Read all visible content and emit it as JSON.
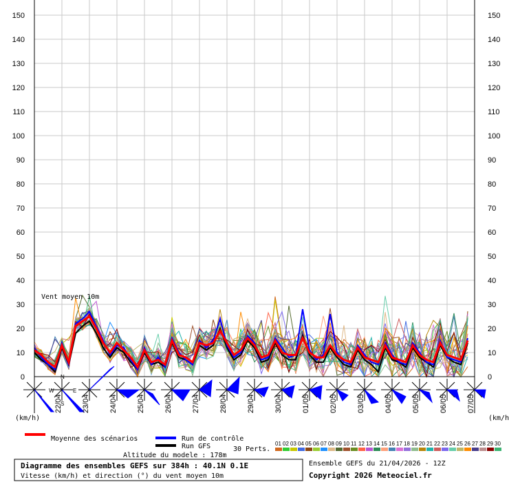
{
  "chart_data": {
    "type": "line",
    "title": "Diagramme des ensembles GEFS sur 384h : 40.1N 0.1E",
    "subtitle": "Vitesse (km/h) et direction (°) du vent moyen 10m",
    "plot_label": "Vent moyen 10m",
    "ylim": [
      0,
      150
    ],
    "yticks": [
      0,
      10,
      20,
      30,
      40,
      50,
      60,
      70,
      80,
      90,
      100,
      110,
      120,
      130,
      140,
      150
    ],
    "ylabel_left": "(km/h)",
    "ylabel_right": "(km/h)",
    "grid": true,
    "x_steps": 64,
    "date_labels": [
      "22/04",
      "23/04",
      "24/04",
      "25/04",
      "26/04",
      "27/04",
      "28/04",
      "29/04",
      "30/04",
      "01/05",
      "02/05",
      "03/05",
      "04/05",
      "05/05",
      "06/05",
      "07/05"
    ],
    "series": [
      {
        "name": "Moyenne des scénarios",
        "color": "#ff0000",
        "values": [
          11,
          9,
          6,
          4,
          13,
          6,
          21,
          23,
          25,
          20,
          14,
          10,
          14,
          11,
          8,
          4,
          11,
          6,
          7,
          5,
          15,
          9,
          8,
          6,
          14,
          13,
          14,
          19,
          14,
          9,
          11,
          16,
          13,
          8,
          9,
          15,
          10,
          9,
          9,
          16,
          10,
          8,
          8,
          13,
          9,
          7,
          6,
          12,
          8,
          7,
          6,
          13,
          8,
          7,
          6,
          13,
          9,
          7,
          6,
          14,
          9,
          8,
          7,
          15
        ]
      },
      {
        "name": "Run de contrôle",
        "color": "#0000ff",
        "values": [
          12,
          8,
          5,
          3,
          14,
          5,
          22,
          24,
          27,
          21,
          15,
          9,
          13,
          12,
          7,
          3,
          12,
          5,
          8,
          4,
          16,
          10,
          7,
          5,
          15,
          12,
          15,
          24,
          13,
          8,
          10,
          17,
          14,
          7,
          8,
          16,
          12,
          8,
          9,
          28,
          11,
          7,
          9,
          26,
          10,
          6,
          5,
          13,
          9,
          6,
          5,
          14,
          9,
          6,
          5,
          14,
          10,
          6,
          5,
          15,
          8,
          7,
          6,
          16
        ]
      },
      {
        "name": "Run GFS",
        "color": "#000000",
        "values": [
          10,
          7,
          5,
          2,
          12,
          5,
          18,
          21,
          23,
          18,
          12,
          8,
          12,
          10,
          6,
          3,
          10,
          5,
          6,
          4,
          14,
          8,
          7,
          5,
          13,
          11,
          13,
          20,
          12,
          7,
          9,
          15,
          12,
          6,
          7,
          14,
          9,
          7,
          7,
          17,
          9,
          6,
          6,
          12,
          8,
          5,
          4,
          11,
          7,
          5,
          2,
          12,
          7,
          6,
          4,
          12,
          8,
          6,
          4,
          13,
          8,
          6,
          5,
          14
        ]
      }
    ],
    "wind_direction_label": "Vent",
    "compass": {
      "n": "N",
      "s": "S",
      "w": "W",
      "e": "E"
    }
  },
  "legend": {
    "mean": "Moyenne des scénarios",
    "control": "Run de contrôle",
    "gfs": "Run GFS",
    "perts_label": "30 Perts.",
    "pert_numbers": [
      "01",
      "02",
      "03",
      "04",
      "05",
      "06",
      "07",
      "08",
      "09",
      "10",
      "11",
      "12",
      "13",
      "14",
      "15",
      "16",
      "17",
      "18",
      "19",
      "20",
      "21",
      "22",
      "23",
      "24",
      "25",
      "26",
      "27",
      "28",
      "29",
      "30"
    ],
    "pert_colors": [
      "#d2691e",
      "#32cd32",
      "#c8c800",
      "#4169e1",
      "#8b4513",
      "#9acd32",
      "#1e90ff",
      "#deb887",
      "#556b2f",
      "#a0522d",
      "#6b8e23",
      "#ff6347",
      "#ba55d3",
      "#2e8b57",
      "#ffa07a",
      "#4682b4",
      "#da70d6",
      "#9370db",
      "#8fbc8f",
      "#b8860b",
      "#20b2aa",
      "#cd5c5c",
      "#7b68ee",
      "#66cdaa",
      "#bdb76b",
      "#ff8c00",
      "#483d8b",
      "#bc8f8f",
      "#8b0000",
      "#3cb371"
    ]
  },
  "altitude": "Altitude du modele : 178m",
  "info": {
    "run": "Ensemble GEFS du 21/04/2026 - 12Z",
    "copyright": "Copyright 2026 Meteociel.fr"
  }
}
